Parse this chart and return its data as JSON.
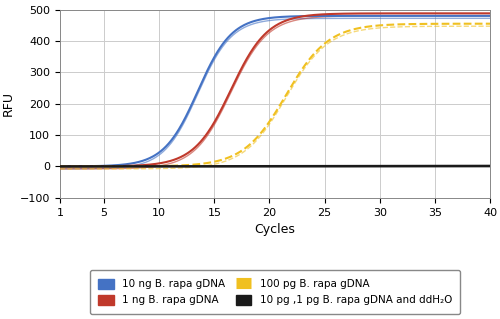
{
  "x_min": 1,
  "x_max": 40,
  "y_min": -100,
  "y_max": 500,
  "x_ticks": [
    1,
    5,
    10,
    15,
    20,
    25,
    30,
    35,
    40
  ],
  "y_ticks": [
    -100,
    0,
    100,
    200,
    300,
    400,
    500
  ],
  "xlabel": "Cycles",
  "ylabel": "RFU",
  "curve_blue": {
    "color": "#4472C4",
    "L": 480,
    "k": 0.65,
    "x0": 13.5
  },
  "curve_red": {
    "color": "#C0392B",
    "L": 488,
    "k": 0.6,
    "x0": 16.5
  },
  "curve_yellow": {
    "color": "#F0C020",
    "L": 455,
    "k": 0.52,
    "x0": 21.5
  },
  "curve_black": {
    "color": "#1a1a1a",
    "L": 2,
    "k": 0.1,
    "x0": 30
  },
  "legend_labels": [
    "10 ng B. rapa gDNA",
    "1 ng B. rapa gDNA",
    "100 pg B. rapa gDNA",
    "10 pg ,1 pg B. rapa gDNA and ddH₂O"
  ],
  "legend_colors": [
    "#4472C4",
    "#C0392B",
    "#F0C020",
    "#1a1a1a"
  ],
  "background_color": "#ffffff",
  "grid_color": "#cccccc"
}
